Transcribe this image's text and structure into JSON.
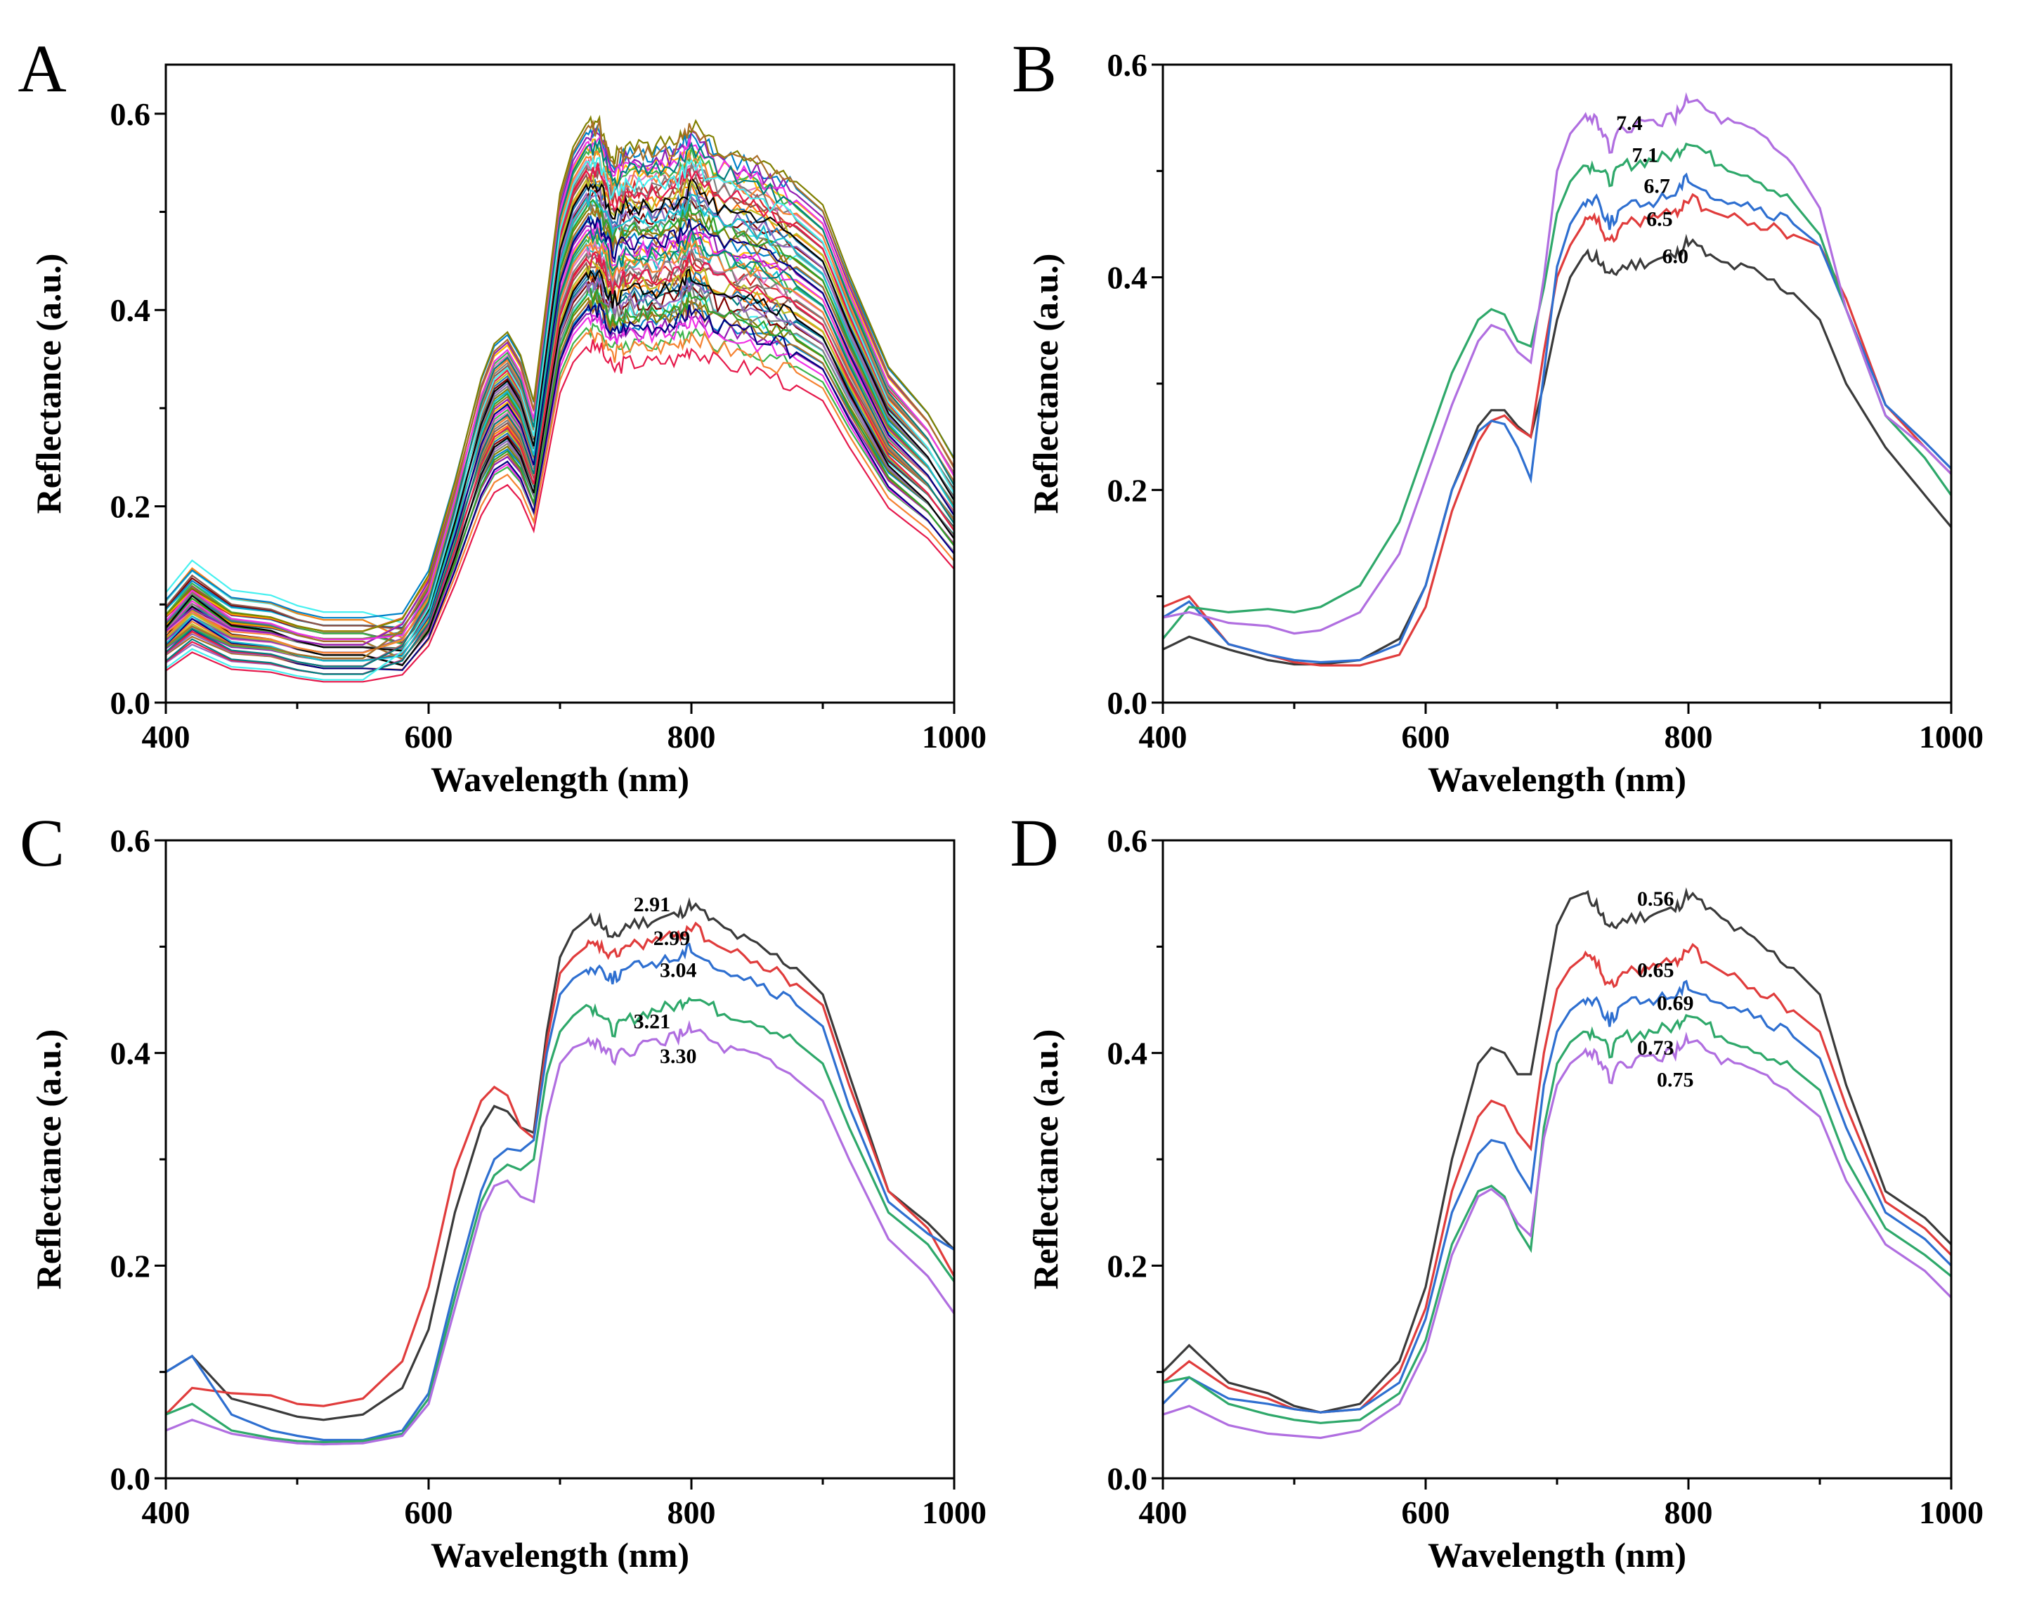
{
  "chart_data": [
    {
      "panel": "A",
      "type": "line",
      "title": "",
      "xlabel": "Wavelength (nm)",
      "ylabel": "Reflectance (a.u.)",
      "xlim": [
        400,
        1000
      ],
      "ylim": [
        0.0,
        0.65
      ],
      "xticks": [
        "400",
        "600",
        "800",
        "1000"
      ],
      "yticks": [
        "0.0",
        "0.2",
        "0.4",
        "0.6"
      ],
      "xtick_values": [
        400,
        600,
        800,
        1000
      ],
      "ytick_values": [
        0.0,
        0.2,
        0.4,
        0.6
      ],
      "grid": false,
      "note": "Many overlapping multicolored reflectance spectra",
      "ensemble": {
        "count": 60,
        "x": [
          400,
          420,
          450,
          480,
          500,
          520,
          550,
          580,
          600,
          620,
          640,
          650,
          660,
          670,
          680,
          690,
          700,
          710,
          720,
          730,
          740,
          750,
          770,
          790,
          800,
          820,
          850,
          880,
          900,
          920,
          950,
          980,
          1000
        ],
        "base": [
          0.07,
          0.095,
          0.072,
          0.068,
          0.06,
          0.055,
          0.055,
          0.062,
          0.1,
          0.18,
          0.27,
          0.3,
          0.31,
          0.29,
          0.25,
          0.34,
          0.43,
          0.47,
          0.49,
          0.49,
          0.46,
          0.47,
          0.47,
          0.475,
          0.49,
          0.47,
          0.46,
          0.44,
          0.42,
          0.36,
          0.28,
          0.24,
          0.2
        ],
        "colors": [
          "#e6194b",
          "#3cb44b",
          "#0082c8",
          "#f58231",
          "#911eb4",
          "#46f0f0",
          "#f032e6",
          "#808000",
          "#008080",
          "#aa6e28",
          "#800000",
          "#000080",
          "#808080",
          "#ff7f0e",
          "#2ca02c",
          "#1f77b4",
          "#d62728",
          "#9467bd",
          "#8c564b",
          "#17becf",
          "#bcbd22",
          "#e377c2",
          "#000000",
          "#7f7f7f",
          "#ffbb00"
        ]
      }
    },
    {
      "panel": "B",
      "type": "line",
      "title": "",
      "xlabel": "Wavelength (nm)",
      "ylabel": "Reflectance (a.u.)",
      "xlim": [
        400,
        1000
      ],
      "ylim": [
        0.0,
        0.6
      ],
      "xticks": [
        "400",
        "600",
        "800",
        "1000"
      ],
      "yticks": [
        "0.0",
        "0.2",
        "0.4",
        "0.6"
      ],
      "xtick_values": [
        400,
        600,
        800,
        1000
      ],
      "ytick_values": [
        0.0,
        0.2,
        0.4,
        0.6
      ],
      "grid": false,
      "x": [
        400,
        420,
        450,
        480,
        500,
        520,
        550,
        580,
        600,
        620,
        640,
        650,
        660,
        670,
        680,
        690,
        700,
        710,
        720,
        730,
        740,
        750,
        770,
        790,
        800,
        820,
        850,
        880,
        900,
        920,
        950,
        980,
        1000
      ],
      "series": [
        {
          "name": "6.0",
          "color": "#3a3a3a",
          "label_x": 790,
          "label_y": 0.42,
          "values": [
            0.05,
            0.062,
            0.05,
            0.04,
            0.036,
            0.036,
            0.04,
            0.06,
            0.11,
            0.2,
            0.26,
            0.275,
            0.275,
            0.26,
            0.25,
            0.3,
            0.36,
            0.4,
            0.42,
            0.42,
            0.4,
            0.41,
            0.415,
            0.42,
            0.435,
            0.415,
            0.405,
            0.385,
            0.36,
            0.3,
            0.24,
            0.195,
            0.165
          ]
        },
        {
          "name": "6.5",
          "color": "#e03c3c",
          "label_x": 778,
          "label_y": 0.455,
          "values": [
            0.09,
            0.1,
            0.055,
            0.045,
            0.038,
            0.035,
            0.035,
            0.045,
            0.09,
            0.18,
            0.245,
            0.265,
            0.27,
            0.258,
            0.25,
            0.33,
            0.4,
            0.43,
            0.45,
            0.455,
            0.43,
            0.45,
            0.455,
            0.46,
            0.475,
            0.46,
            0.45,
            0.44,
            0.43,
            0.38,
            0.28,
            0.24,
            0.215
          ]
        },
        {
          "name": "6.7",
          "color": "#2e6fd0",
          "label_x": 776,
          "label_y": 0.486,
          "values": [
            0.08,
            0.095,
            0.055,
            0.045,
            0.04,
            0.038,
            0.04,
            0.055,
            0.11,
            0.2,
            0.255,
            0.265,
            0.262,
            0.24,
            0.21,
            0.31,
            0.41,
            0.45,
            0.47,
            0.475,
            0.45,
            0.465,
            0.47,
            0.48,
            0.495,
            0.475,
            0.465,
            0.45,
            0.43,
            0.37,
            0.28,
            0.245,
            0.22
          ]
        },
        {
          "name": "7.1",
          "color": "#2ea86a",
          "label_x": 767,
          "label_y": 0.515,
          "values": [
            0.06,
            0.09,
            0.085,
            0.088,
            0.085,
            0.09,
            0.11,
            0.17,
            0.24,
            0.31,
            0.36,
            0.37,
            0.365,
            0.34,
            0.335,
            0.39,
            0.46,
            0.49,
            0.505,
            0.505,
            0.49,
            0.505,
            0.51,
            0.515,
            0.53,
            0.51,
            0.495,
            0.47,
            0.44,
            0.37,
            0.27,
            0.23,
            0.195
          ]
        },
        {
          "name": "7.4",
          "color": "#b06ee0",
          "label_x": 755,
          "label_y": 0.545,
          "values": [
            0.08,
            0.085,
            0.075,
            0.072,
            0.065,
            0.068,
            0.085,
            0.14,
            0.21,
            0.28,
            0.34,
            0.355,
            0.35,
            0.33,
            0.32,
            0.4,
            0.5,
            0.535,
            0.55,
            0.55,
            0.52,
            0.54,
            0.545,
            0.55,
            0.57,
            0.55,
            0.535,
            0.505,
            0.465,
            0.37,
            0.27,
            0.24,
            0.215
          ]
        }
      ]
    },
    {
      "panel": "C",
      "type": "line",
      "title": "",
      "xlabel": "Wavelength (nm)",
      "ylabel": "Reflectance (a.u.)",
      "xlim": [
        400,
        1000
      ],
      "ylim": [
        0.0,
        0.6
      ],
      "xticks": [
        "400",
        "600",
        "800",
        "1000"
      ],
      "yticks": [
        "0.0",
        "0.2",
        "0.4",
        "0.6"
      ],
      "xtick_values": [
        400,
        600,
        800,
        1000
      ],
      "ytick_values": [
        0.0,
        0.2,
        0.4,
        0.6
      ],
      "grid": false,
      "x": [
        400,
        420,
        450,
        480,
        500,
        520,
        550,
        580,
        600,
        620,
        640,
        650,
        660,
        670,
        680,
        690,
        700,
        710,
        720,
        730,
        740,
        750,
        770,
        790,
        800,
        820,
        850,
        880,
        900,
        920,
        950,
        980,
        1000
      ],
      "series": [
        {
          "name": "2.91",
          "color": "#3a3a3a",
          "label_x": 770,
          "label_y": 0.54,
          "values": [
            0.1,
            0.115,
            0.075,
            0.065,
            0.058,
            0.055,
            0.06,
            0.085,
            0.14,
            0.25,
            0.33,
            0.35,
            0.345,
            0.33,
            0.325,
            0.42,
            0.49,
            0.515,
            0.525,
            0.525,
            0.505,
            0.52,
            0.525,
            0.53,
            0.54,
            0.52,
            0.5,
            0.48,
            0.455,
            0.38,
            0.27,
            0.24,
            0.215
          ]
        },
        {
          "name": "2.99",
          "color": "#e03c3c",
          "label_x": 785,
          "label_y": 0.508,
          "values": [
            0.06,
            0.085,
            0.08,
            0.078,
            0.07,
            0.068,
            0.075,
            0.11,
            0.18,
            0.29,
            0.355,
            0.368,
            0.36,
            0.33,
            0.32,
            0.41,
            0.475,
            0.49,
            0.5,
            0.5,
            0.49,
            0.5,
            0.505,
            0.51,
            0.52,
            0.5,
            0.485,
            0.465,
            0.445,
            0.37,
            0.27,
            0.235,
            0.19
          ]
        },
        {
          "name": "3.04",
          "color": "#2e6fd0",
          "label_x": 790,
          "label_y": 0.478,
          "values": [
            0.1,
            0.115,
            0.06,
            0.045,
            0.04,
            0.036,
            0.036,
            0.045,
            0.08,
            0.18,
            0.27,
            0.3,
            0.31,
            0.308,
            0.318,
            0.4,
            0.455,
            0.47,
            0.478,
            0.48,
            0.47,
            0.478,
            0.485,
            0.49,
            0.5,
            0.48,
            0.465,
            0.445,
            0.425,
            0.35,
            0.26,
            0.23,
            0.215
          ]
        },
        {
          "name": "3.21",
          "color": "#2ea86a",
          "label_x": 770,
          "label_y": 0.43,
          "values": [
            0.06,
            0.07,
            0.045,
            0.038,
            0.035,
            0.034,
            0.035,
            0.042,
            0.075,
            0.17,
            0.26,
            0.285,
            0.295,
            0.29,
            0.3,
            0.38,
            0.42,
            0.435,
            0.445,
            0.44,
            0.42,
            0.43,
            0.44,
            0.445,
            0.455,
            0.44,
            0.43,
            0.41,
            0.39,
            0.33,
            0.25,
            0.22,
            0.185
          ]
        },
        {
          "name": "3.30",
          "color": "#b06ee0",
          "label_x": 790,
          "label_y": 0.397,
          "values": [
            0.045,
            0.055,
            0.042,
            0.036,
            0.033,
            0.032,
            0.033,
            0.04,
            0.07,
            0.16,
            0.25,
            0.275,
            0.28,
            0.265,
            0.26,
            0.34,
            0.39,
            0.405,
            0.41,
            0.41,
            0.395,
            0.4,
            0.41,
            0.415,
            0.425,
            0.405,
            0.395,
            0.375,
            0.355,
            0.3,
            0.225,
            0.19,
            0.155
          ]
        }
      ]
    },
    {
      "panel": "D",
      "type": "line",
      "title": "",
      "xlabel": "Wavelength (nm)",
      "ylabel": "Reflectance (a.u.)",
      "xlim": [
        400,
        1000
      ],
      "ylim": [
        0.0,
        0.6
      ],
      "xticks": [
        "400",
        "600",
        "800",
        "1000"
      ],
      "yticks": [
        "0.0",
        "0.2",
        "0.4",
        "0.6"
      ],
      "xtick_values": [
        400,
        600,
        800,
        1000
      ],
      "ytick_values": [
        0.0,
        0.2,
        0.4,
        0.6
      ],
      "grid": false,
      "x": [
        400,
        420,
        450,
        480,
        500,
        520,
        550,
        580,
        600,
        620,
        640,
        650,
        660,
        670,
        680,
        690,
        700,
        710,
        720,
        730,
        740,
        750,
        770,
        790,
        800,
        820,
        850,
        880,
        900,
        920,
        950,
        980,
        1000
      ],
      "series": [
        {
          "name": "0.56",
          "color": "#3a3a3a",
          "label_x": 775,
          "label_y": 0.545,
          "values": [
            0.1,
            0.125,
            0.09,
            0.08,
            0.068,
            0.062,
            0.07,
            0.11,
            0.18,
            0.3,
            0.39,
            0.405,
            0.4,
            0.38,
            0.38,
            0.45,
            0.52,
            0.545,
            0.55,
            0.54,
            0.515,
            0.525,
            0.53,
            0.535,
            0.55,
            0.53,
            0.505,
            0.48,
            0.455,
            0.37,
            0.27,
            0.245,
            0.22
          ]
        },
        {
          "name": "0.65",
          "color": "#e03c3c",
          "label_x": 775,
          "label_y": 0.478,
          "values": [
            0.09,
            0.11,
            0.085,
            0.075,
            0.065,
            0.062,
            0.065,
            0.1,
            0.16,
            0.27,
            0.34,
            0.355,
            0.35,
            0.325,
            0.31,
            0.4,
            0.46,
            0.48,
            0.49,
            0.485,
            0.46,
            0.475,
            0.48,
            0.485,
            0.5,
            0.48,
            0.46,
            0.44,
            0.42,
            0.35,
            0.26,
            0.235,
            0.21
          ]
        },
        {
          "name": "0.69",
          "color": "#2e6fd0",
          "label_x": 790,
          "label_y": 0.447,
          "values": [
            0.07,
            0.095,
            0.075,
            0.07,
            0.065,
            0.062,
            0.065,
            0.09,
            0.15,
            0.25,
            0.305,
            0.318,
            0.315,
            0.29,
            0.27,
            0.37,
            0.42,
            0.44,
            0.45,
            0.45,
            0.43,
            0.445,
            0.45,
            0.455,
            0.465,
            0.45,
            0.435,
            0.415,
            0.395,
            0.33,
            0.25,
            0.225,
            0.2
          ]
        },
        {
          "name": "0.73",
          "color": "#2ea86a",
          "label_x": 775,
          "label_y": 0.405,
          "values": [
            0.09,
            0.095,
            0.07,
            0.06,
            0.055,
            0.052,
            0.055,
            0.08,
            0.13,
            0.22,
            0.27,
            0.275,
            0.265,
            0.235,
            0.215,
            0.33,
            0.39,
            0.41,
            0.42,
            0.42,
            0.4,
            0.415,
            0.42,
            0.425,
            0.44,
            0.42,
            0.405,
            0.385,
            0.365,
            0.3,
            0.235,
            0.21,
            0.19
          ]
        },
        {
          "name": "0.75",
          "color": "#b06ee0",
          "label_x": 790,
          "label_y": 0.375,
          "values": [
            0.06,
            0.068,
            0.05,
            0.042,
            0.04,
            0.038,
            0.045,
            0.07,
            0.12,
            0.21,
            0.265,
            0.272,
            0.262,
            0.24,
            0.228,
            0.32,
            0.37,
            0.39,
            0.4,
            0.4,
            0.375,
            0.39,
            0.395,
            0.4,
            0.415,
            0.395,
            0.38,
            0.36,
            0.34,
            0.28,
            0.22,
            0.195,
            0.17
          ]
        }
      ]
    }
  ]
}
